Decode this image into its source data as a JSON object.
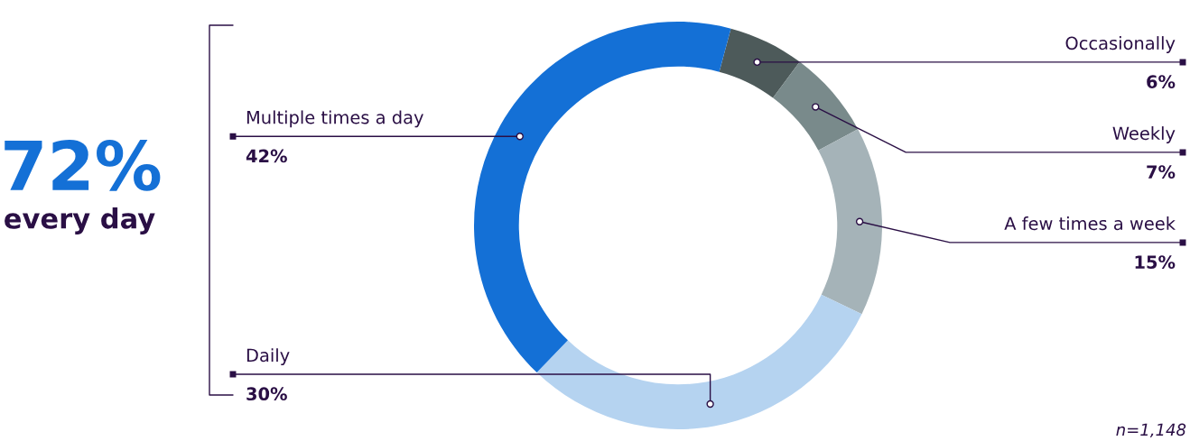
{
  "chart_data": {
    "type": "donut",
    "categories": [
      "Occasionally",
      "Weekly",
      "A few times a week",
      "Daily",
      "Multiple times a day"
    ],
    "values": [
      6,
      7,
      15,
      30,
      42
    ],
    "value_labels": [
      "6%",
      "7%",
      "15%",
      "30%",
      "42%"
    ],
    "colors": [
      "#4d5a5a",
      "#798a8b",
      "#a5b3b8",
      "#b5d3f0",
      "#1470d6"
    ],
    "annotations": [
      "72%",
      "every day",
      "n=1,148"
    ]
  }
}
